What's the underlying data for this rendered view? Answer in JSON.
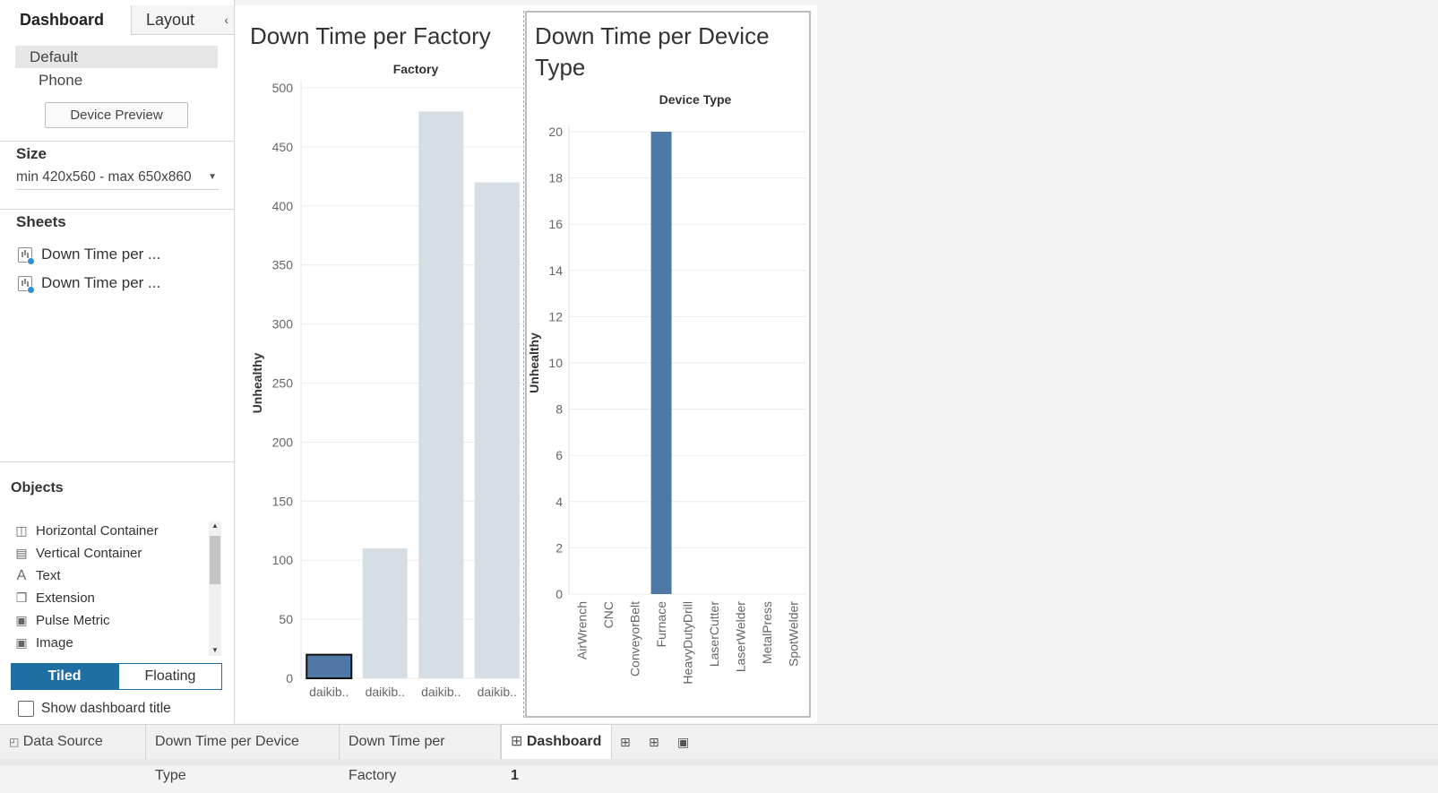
{
  "left_panel": {
    "tabs": {
      "dashboard": "Dashboard",
      "layout": "Layout"
    },
    "devices": {
      "default": "Default",
      "phone": "Phone",
      "preview_button": "Device Preview"
    },
    "size": {
      "title": "Size",
      "value": "min 420x560 - max 650x860"
    },
    "sheets": {
      "title": "Sheets",
      "items": [
        "Down Time per ...",
        "Down Time per ..."
      ]
    },
    "objects": {
      "title": "Objects",
      "items": [
        {
          "label": "Horizontal Container",
          "icon": "horizontal-container-icon"
        },
        {
          "label": "Vertical Container",
          "icon": "vertical-container-icon"
        },
        {
          "label": "Text",
          "icon": "text-icon"
        },
        {
          "label": "Extension",
          "icon": "extension-icon"
        },
        {
          "label": "Pulse Metric",
          "icon": "pulse-metric-icon"
        },
        {
          "label": "Image",
          "icon": "image-icon"
        }
      ]
    },
    "layout_mode": {
      "tiled": "Tiled",
      "floating": "Floating",
      "selected": "Tiled"
    },
    "show_title": {
      "label": "Show dashboard title",
      "checked": false
    }
  },
  "colors": {
    "accent": "#1f6fa3",
    "bar_highlight": "#4e79a7",
    "bar_dim": "#d5dde5"
  },
  "chart_data": [
    {
      "type": "bar",
      "title": "Down Time per Factory",
      "header": "Factory",
      "ylabel": "Unhealthy",
      "categories": [
        "daikib..",
        "daikib..",
        "daikib..",
        "daikib.."
      ],
      "values": [
        20,
        110,
        480,
        420
      ],
      "highlighted": [
        true,
        false,
        false,
        false
      ],
      "ylim": [
        0,
        500
      ],
      "yticks": [
        0,
        50,
        100,
        150,
        200,
        250,
        300,
        350,
        400,
        450,
        500
      ],
      "grid": true
    },
    {
      "type": "bar",
      "title": "Down Time per Device Type",
      "header": "Device Type",
      "ylabel": "Unhealthy",
      "categories": [
        "AirWrench",
        "CNC",
        "ConveyorBelt",
        "Furnace",
        "HeavyDutyDrill",
        "LaserCutter",
        "LaserWelder",
        "MetalPress",
        "SpotWelder"
      ],
      "values": [
        0,
        0,
        0,
        20,
        0,
        0,
        0,
        0,
        0
      ],
      "ylim": [
        0,
        20
      ],
      "yticks": [
        0,
        2,
        4,
        6,
        8,
        10,
        12,
        14,
        16,
        18,
        20
      ],
      "grid": true
    }
  ],
  "bottom_tabs": [
    "Data Source",
    "Down Time per Device Type",
    "Down Time per Factory",
    "Dashboard 1"
  ],
  "bottom_icons": [
    "new-worksheet-icon",
    "new-dashboard-icon",
    "new-story-icon"
  ]
}
